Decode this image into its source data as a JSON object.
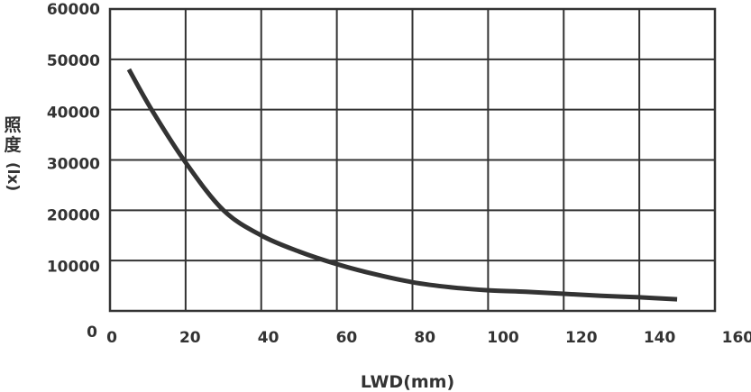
{
  "chart_data": {
    "type": "line",
    "title": "",
    "xlabel": "LWD(mm)",
    "ylabel": "照度(lx)",
    "ylabel_chars": [
      "照",
      "度"
    ],
    "ylabel_unit": "(lx)",
    "xlim": [
      0,
      160
    ],
    "ylim": [
      0,
      60000
    ],
    "x_ticks": [
      "0",
      "20",
      "40",
      "60",
      "80",
      "100",
      "120",
      "140",
      "160"
    ],
    "y_ticks": [
      "60000",
      "50000",
      "40000",
      "30000",
      "20000",
      "10000",
      "0"
    ],
    "grid": true,
    "legend": null,
    "series": [
      {
        "name": "照度",
        "color": "#333333",
        "x": [
          5,
          11,
          20,
          30,
          40,
          50,
          60,
          70,
          80,
          90,
          100,
          110,
          120,
          130,
          140,
          150
        ],
        "values": [
          48000,
          40000,
          29500,
          20000,
          15000,
          11800,
          9300,
          7300,
          5700,
          4700,
          4100,
          3800,
          3400,
          3000,
          2700,
          2300
        ]
      }
    ]
  },
  "colors": {
    "line": "#333333",
    "grid": "#333333",
    "background": "#ffffff"
  }
}
